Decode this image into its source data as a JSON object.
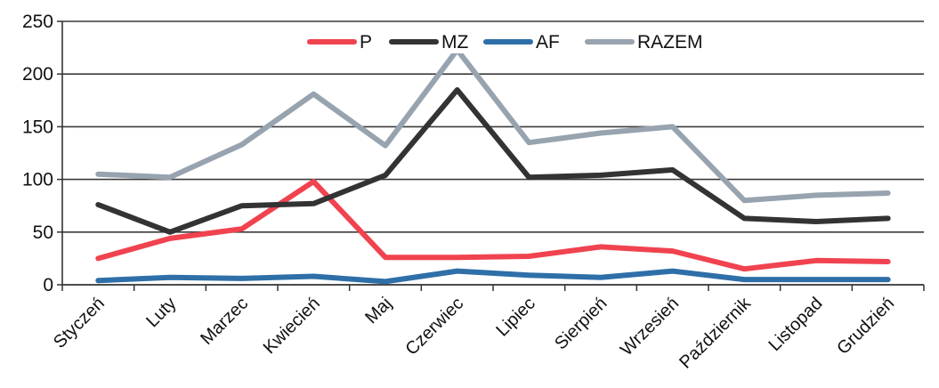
{
  "chart_data": {
    "type": "line",
    "title": "",
    "xlabel": "",
    "ylabel": "",
    "ylim": [
      0,
      250
    ],
    "yticks": [
      0,
      50,
      100,
      150,
      200,
      250
    ],
    "grid": true,
    "legend_position": "top",
    "categories": [
      "Styczeń",
      "Luty",
      "Marzec",
      "Kwiecień",
      "Maj",
      "Czerwiec",
      "Lipiec",
      "Sierpień",
      "Wrzesień",
      "Październik",
      "Listopad",
      "Grudzień"
    ],
    "series": [
      {
        "name": "P",
        "color": "#f0434f",
        "values": [
          25,
          44,
          53,
          98,
          26,
          26,
          27,
          36,
          32,
          15,
          23,
          22
        ]
      },
      {
        "name": "MZ",
        "color": "#333333",
        "values": [
          76,
          50,
          75,
          77,
          104,
          185,
          102,
          104,
          109,
          63,
          60,
          63
        ]
      },
      {
        "name": "AF",
        "color": "#2e6fa8",
        "values": [
          4,
          7,
          6,
          8,
          3,
          13,
          9,
          7,
          13,
          5,
          5,
          5
        ]
      },
      {
        "name": "RAZEM",
        "color": "#97a3ae",
        "values": [
          105,
          102,
          133,
          181,
          132,
          223,
          135,
          144,
          150,
          80,
          85,
          87
        ]
      }
    ]
  }
}
